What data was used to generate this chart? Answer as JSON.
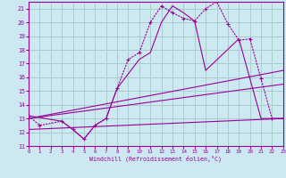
{
  "bg_color": "#cce8f0",
  "grid_color": "#aacccc",
  "line_color": "#990099",
  "xlabel": "Windchill (Refroidissement éolien,°C)",
  "xlim": [
    0,
    23
  ],
  "ylim": [
    11,
    21.5
  ],
  "yticks": [
    11,
    12,
    13,
    14,
    15,
    16,
    17,
    18,
    19,
    20,
    21
  ],
  "xticks": [
    0,
    1,
    2,
    3,
    4,
    5,
    6,
    7,
    8,
    9,
    10,
    11,
    12,
    13,
    14,
    15,
    16,
    17,
    18,
    19,
    20,
    21,
    22,
    23
  ],
  "series": [
    {
      "x": [
        0,
        1,
        3,
        4,
        5,
        6,
        7,
        8,
        9,
        10,
        11,
        12,
        13,
        14,
        15,
        16,
        17,
        18,
        19,
        20,
        21,
        22,
        23
      ],
      "y": [
        13.2,
        12.5,
        12.8,
        12.2,
        11.5,
        12.5,
        13.0,
        15.2,
        17.3,
        17.8,
        20.0,
        21.2,
        20.7,
        20.3,
        20.1,
        21.0,
        21.5,
        19.9,
        18.7,
        18.8,
        15.9,
        13.0,
        13.0
      ],
      "marker": "+"
    },
    {
      "x": [
        0,
        3,
        4,
        5,
        6,
        7,
        8,
        10,
        11,
        12,
        13,
        14,
        15,
        16,
        19,
        20,
        21,
        22,
        23
      ],
      "y": [
        13.2,
        12.8,
        12.2,
        11.5,
        12.5,
        13.0,
        15.2,
        17.3,
        17.8,
        20.0,
        21.2,
        20.7,
        20.1,
        16.5,
        18.8,
        15.9,
        13.0,
        13.0,
        13.0
      ],
      "marker": null
    },
    {
      "x": [
        0,
        23
      ],
      "y": [
        13.0,
        16.5
      ],
      "marker": null
    },
    {
      "x": [
        0,
        23
      ],
      "y": [
        13.0,
        15.5
      ],
      "marker": null
    },
    {
      "x": [
        0,
        23
      ],
      "y": [
        12.2,
        13.0
      ],
      "marker": null
    }
  ]
}
